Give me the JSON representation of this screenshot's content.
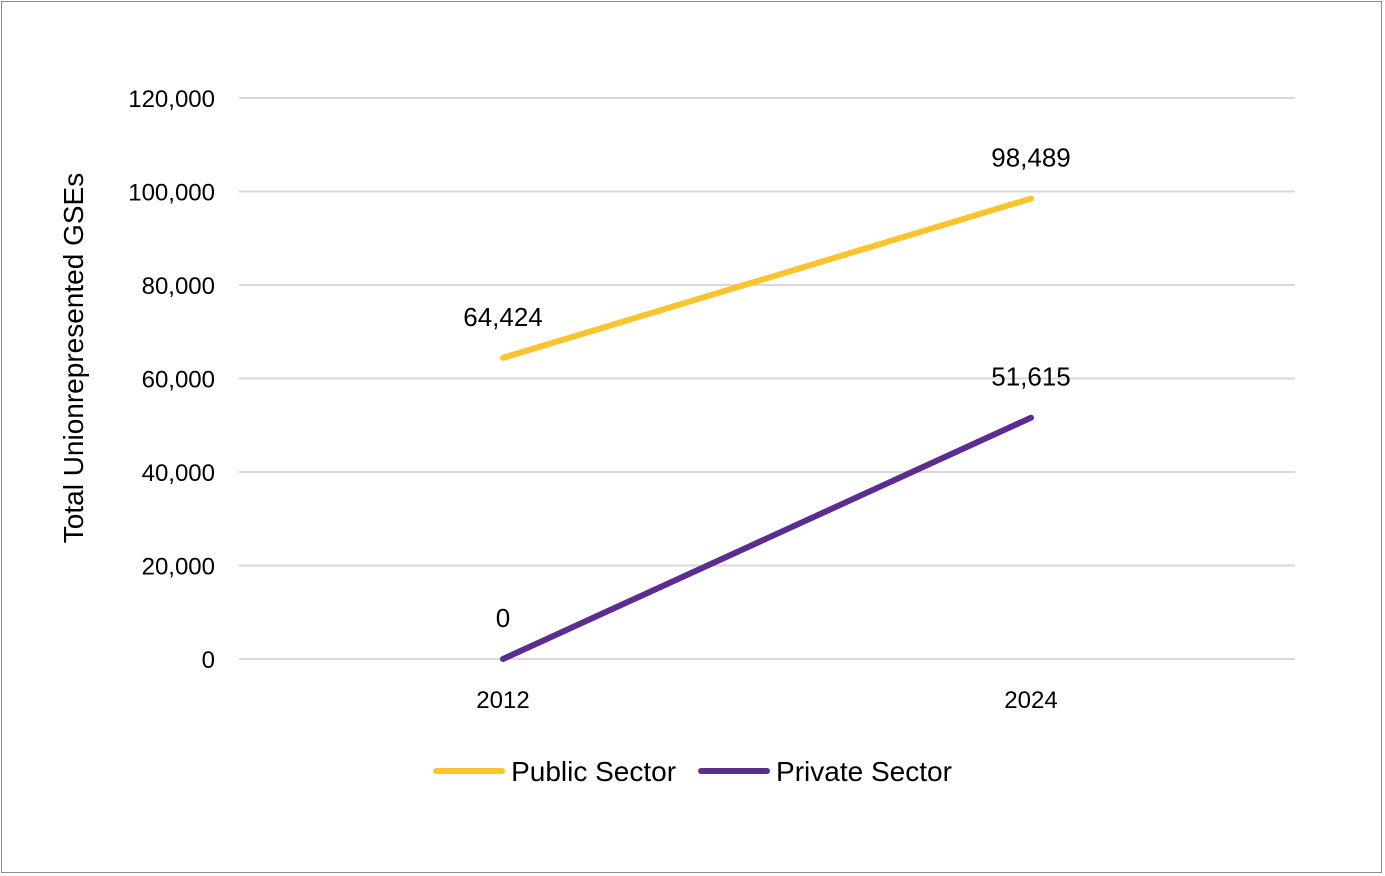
{
  "chart_data": {
    "type": "line",
    "title": "",
    "xlabel": "",
    "ylabel": "Total Unionrepresented GSEs",
    "categories": [
      "2012",
      "2024"
    ],
    "ylim": [
      0,
      120000
    ],
    "yticks": [
      0,
      20000,
      40000,
      60000,
      80000,
      100000,
      120000
    ],
    "ytick_labels": [
      "0",
      "20,000",
      "40,000",
      "60,000",
      "80,000",
      "100,000",
      "120,000"
    ],
    "grid": true,
    "legend_position": "bottom",
    "series": [
      {
        "name": "Public Sector",
        "values": [
          64424,
          98489
        ],
        "labels": [
          "64,424",
          "98,489"
        ],
        "color": "#f9c42e"
      },
      {
        "name": "Private Sector",
        "values": [
          0,
          51615
        ],
        "labels": [
          "0",
          "51,615"
        ],
        "color": "#5c2d91"
      }
    ]
  }
}
